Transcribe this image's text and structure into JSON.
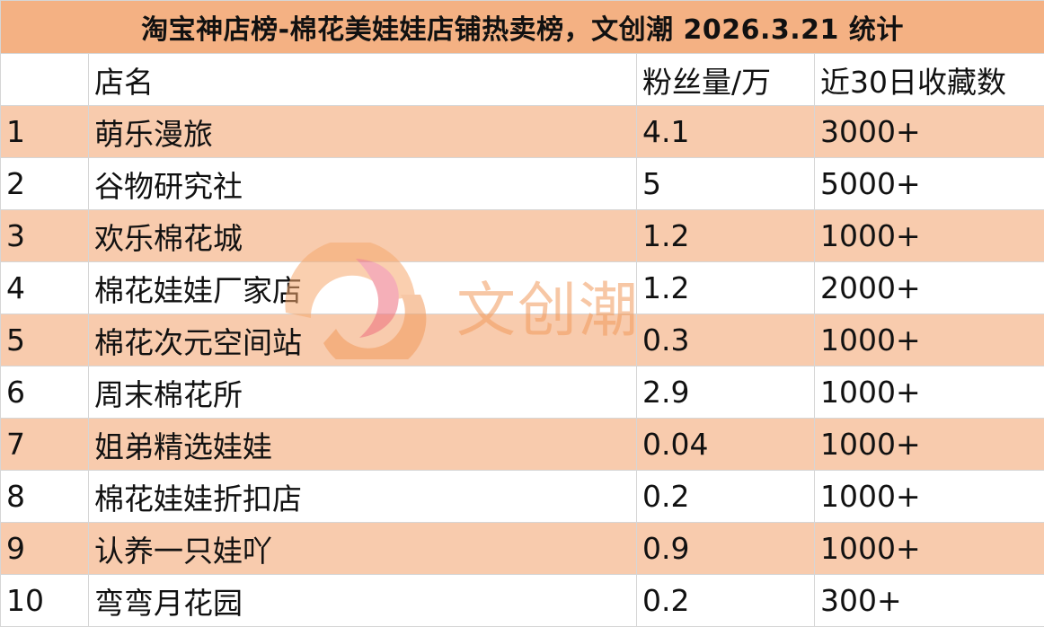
{
  "title": "淘宝神店榜-棉花美娃娃店铺热卖榜，文创潮 2026.3.21 统计",
  "columns": {
    "rank": "",
    "name": "店名",
    "fans": "粉丝量/万",
    "favorites": "近30日收藏数"
  },
  "rows": [
    {
      "rank": "1",
      "name": "萌乐漫旅",
      "fans": "4.1",
      "favorites": "3000+"
    },
    {
      "rank": "2",
      "name": "谷物研究社",
      "fans": "5",
      "favorites": "5000+"
    },
    {
      "rank": "3",
      "name": "欢乐棉花城",
      "fans": "1.2",
      "favorites": "1000+"
    },
    {
      "rank": "4",
      "name": "棉花娃娃厂家店",
      "fans": "1.2",
      "favorites": "2000+"
    },
    {
      "rank": "5",
      "name": "棉花次元空间站",
      "fans": "0.3",
      "favorites": "1000+"
    },
    {
      "rank": "6",
      "name": "周末棉花所",
      "fans": "2.9",
      "favorites": "1000+"
    },
    {
      "rank": "7",
      "name": "姐弟精选娃娃",
      "fans": "0.04",
      "favorites": "1000+"
    },
    {
      "rank": "8",
      "name": "棉花娃娃折扣店",
      "fans": "0.2",
      "favorites": "1000+"
    },
    {
      "rank": "9",
      "name": "认养一只娃吖",
      "fans": "0.9",
      "favorites": "1000+"
    },
    {
      "rank": "10",
      "name": "弯弯月花园",
      "fans": "0.2",
      "favorites": "300+"
    }
  ],
  "watermark": {
    "text": "文创潮",
    "icon": "wenchuangchao-logo-icon"
  },
  "colors": {
    "title_bg": "#f4b183",
    "odd_row_bg": "#f8cbad",
    "even_row_bg": "#ffffff",
    "grid": "#d6d6d6",
    "watermark": "#f29a5c"
  }
}
